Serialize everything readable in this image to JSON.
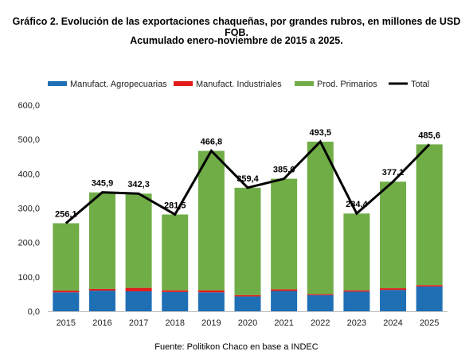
{
  "title_line1": "Gráfico 2. Evolución de las exportaciones chaqueñas, por grandes rubros, en millones de USD FOB.",
  "title_line2": "Acumulado enero-noviembre de 2015 a 2025.",
  "source": "Fuente: Politikon Chaco en base a INDEC",
  "chart_data": {
    "type": "bar",
    "stacked": true,
    "categories": [
      "2015",
      "2016",
      "2017",
      "2018",
      "2019",
      "2020",
      "2021",
      "2022",
      "2023",
      "2024",
      "2025"
    ],
    "series": [
      {
        "name": "Manufact. Agropecuarias",
        "color": "#1f6fb5",
        "values": [
          55,
          60,
          58,
          56,
          55,
          43,
          59,
          47,
          57,
          62,
          72
        ]
      },
      {
        "name": "Manufact. Industriales",
        "color": "#e11b1b",
        "values": [
          5,
          5,
          10,
          5,
          6,
          4,
          5,
          3,
          4,
          5,
          4
        ]
      },
      {
        "name": "Prod. Primarios",
        "color": "#70ad47",
        "values": [
          196.1,
          280.9,
          274.3,
          220.5,
          405.8,
          312.4,
          321.6,
          443.5,
          223.4,
          310.1,
          409.6
        ]
      }
    ],
    "total": {
      "name": "Total",
      "color": "#000000",
      "values": [
        256.1,
        345.9,
        342.3,
        281.5,
        466.8,
        359.4,
        385.6,
        493.5,
        284.4,
        377.1,
        485.6
      ],
      "labels": [
        "256,1",
        "345,9",
        "342,3",
        "281,5",
        "466,8",
        "359,4",
        "385,6",
        "493,5",
        "284,4",
        "377,1",
        "485,6"
      ]
    },
    "ylim": [
      0,
      600
    ],
    "yticks": [
      "0,0",
      "100,0",
      "200,0",
      "300,0",
      "400,0",
      "500,0",
      "600,0"
    ],
    "legend_position": "top",
    "grid": false
  }
}
